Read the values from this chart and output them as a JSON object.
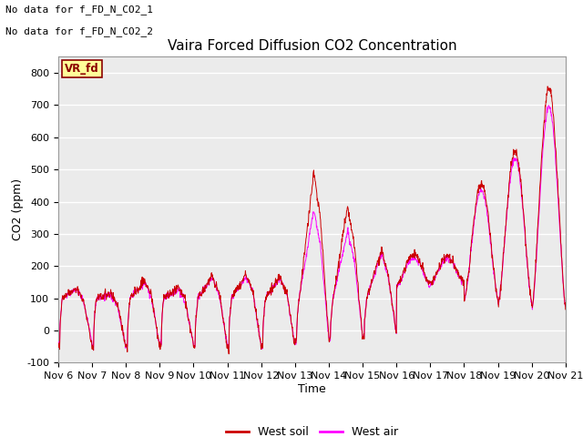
{
  "title": "Vaira Forced Diffusion CO2 Concentration",
  "xlabel": "Time",
  "ylabel": "CO2 (ppm)",
  "ylim": [
    -100,
    850
  ],
  "yticks": [
    -100,
    0,
    100,
    200,
    300,
    400,
    500,
    600,
    700,
    800
  ],
  "xtick_labels": [
    "Nov 6",
    "Nov 7",
    "Nov 8",
    "Nov 9",
    "Nov 10",
    "Nov 11",
    "Nov 12",
    "Nov 13",
    "Nov 14",
    "Nov 15",
    "Nov 16",
    "Nov 17",
    "Nov 18",
    "Nov 19",
    "Nov 20",
    "Nov 21"
  ],
  "annotation_top_left": [
    "No data for f_FD_N_CO2_1",
    "No data for f_FD_N_CO2_2"
  ],
  "legend_entries": [
    "West soil",
    "West air"
  ],
  "soil_color": "#cc0000",
  "air_color": "#ff00ff",
  "box_label": "VR_fd",
  "box_color": "#ffff99",
  "box_border": "#8b0000",
  "box_text_color": "#8b0000",
  "background_color": "#ffffff",
  "plot_bg_color": "#ebebeb",
  "grid_color": "#ffffff",
  "title_fontsize": 11,
  "axis_fontsize": 9,
  "tick_fontsize": 8,
  "annot_fontsize": 8
}
